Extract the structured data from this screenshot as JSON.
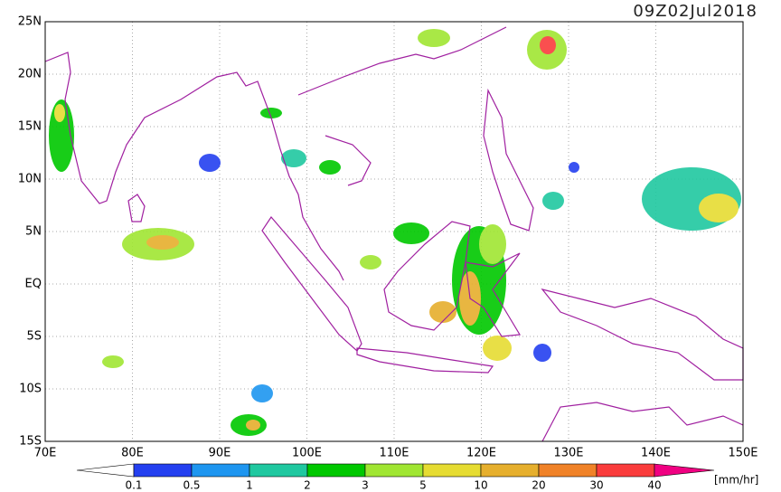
{
  "title": "09Z02Jul2018",
  "lat_labels": [
    "25N",
    "20N",
    "15N",
    "10N",
    "5N",
    "EQ",
    "5S",
    "10S",
    "15S"
  ],
  "lon_labels": [
    "70E",
    "80E",
    "90E",
    "100E",
    "110E",
    "120E",
    "130E",
    "140E",
    "150E"
  ],
  "colorbar": {
    "labels": [
      "0.1",
      "0.5",
      "1",
      "2",
      "3",
      "5",
      "10",
      "20",
      "30",
      "40"
    ],
    "colors": [
      "#ffffff",
      "#2440f0",
      "#1e96f0",
      "#20c8a0",
      "#00c800",
      "#a0e632",
      "#e6dc32",
      "#e6af2d",
      "#f08228",
      "#fa3c3c",
      "#f00082"
    ],
    "unit": "[mm/hr]"
  }
}
